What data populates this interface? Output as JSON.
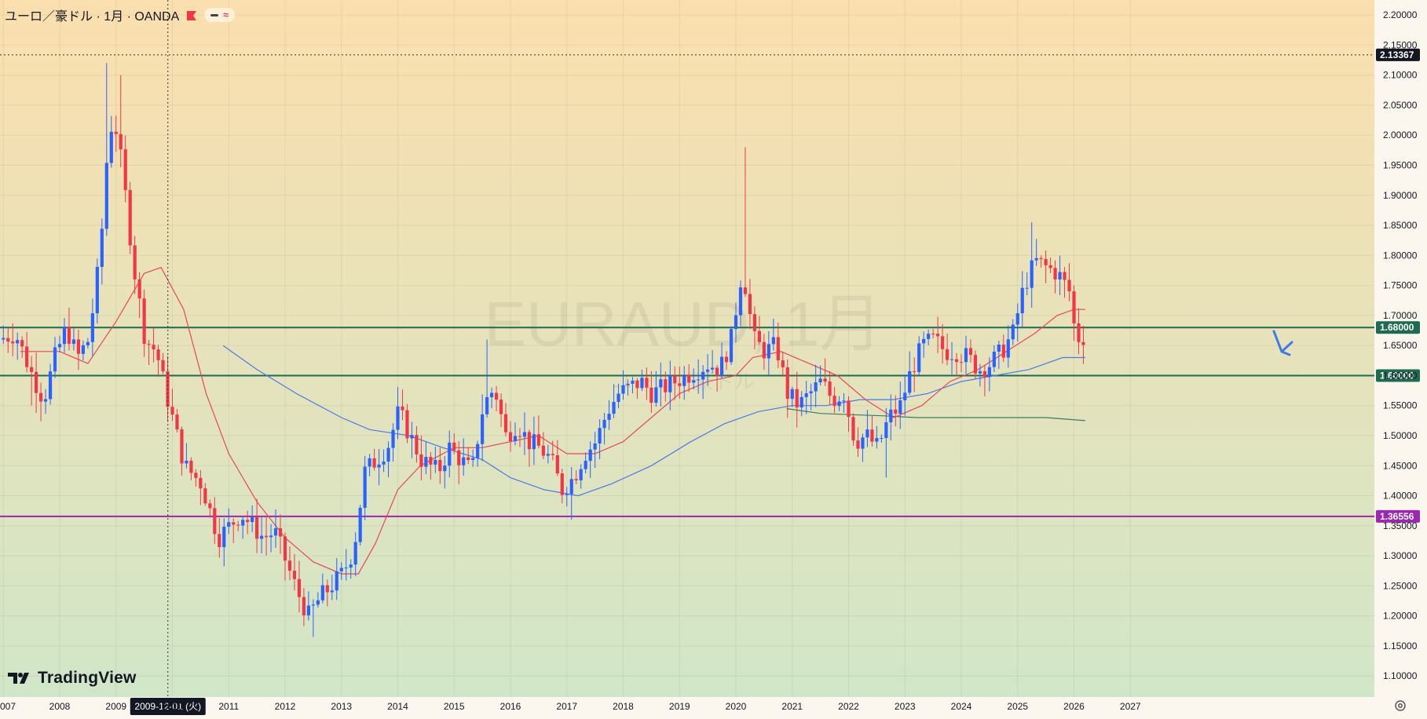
{
  "header": {
    "title": "ユーロ／豪ドル · 1月 · OANDA",
    "approx_symbol": "≈"
  },
  "watermark": {
    "symbol": "EURAUD, 1月",
    "subtitle": "ユーロ／豪ドル"
  },
  "brand": {
    "logo_text": "TradingView"
  },
  "settings_icon": "gear-icon",
  "colors": {
    "up": "#2962ff",
    "down": "#f23645",
    "ma_short": "#e8475a",
    "ma_mid": "#4b7be5",
    "ma_long": "#3c7a5e",
    "level_green": "#1e6b52",
    "level_purple": "#9c27b0",
    "bg_top": "#fbdfae",
    "bg_bottom": "#d1e6c8",
    "arrow": "#3f7be6"
  },
  "crosshair": {
    "date_label": "2009-12-01 (火)",
    "price_label": "2.13367"
  },
  "chart_data": {
    "type": "candlestick",
    "series_name": "EURAUD, 1月",
    "y_range": [
      1.065,
      2.225
    ],
    "x_range_years": [
      2007.0,
      2028.0
    ],
    "y_ticks": [
      "2.20000",
      "2.15000",
      "2.10000",
      "2.05000",
      "2.00000",
      "1.95000",
      "1.90000",
      "1.85000",
      "1.80000",
      "1.75000",
      "1.70000",
      "1.65000",
      "1.60000",
      "1.55000",
      "1.50000",
      "1.45000",
      "1.40000",
      "1.35000",
      "1.30000",
      "1.25000",
      "1.20000",
      "1.15000",
      "1.10000"
    ],
    "x_ticks": [
      "007",
      "2008",
      "2009",
      "2010",
      "2011",
      "2012",
      "2013",
      "2014",
      "2015",
      "2016",
      "2017",
      "2018",
      "2019",
      "2020",
      "2021",
      "2022",
      "2023",
      "2024",
      "2025",
      "2026",
      "2027"
    ],
    "horizontal_levels": [
      {
        "value": 1.68,
        "label": "1.68000",
        "color": "#1e6b52"
      },
      {
        "value": 1.6,
        "label": "1.60000",
        "color": "#1e6b52"
      },
      {
        "value": 1.36556,
        "label": "1.36556",
        "color": "#9c27b0"
      }
    ],
    "anchors": [
      [
        2007.0,
        1.66
      ],
      [
        2007.3,
        1.67
      ],
      [
        2007.6,
        1.6
      ],
      [
        2007.8,
        1.56
      ],
      [
        2008.0,
        1.63
      ],
      [
        2008.2,
        1.68
      ],
      [
        2008.4,
        1.63
      ],
      [
        2008.6,
        1.66
      ],
      [
        2008.8,
        1.8
      ],
      [
        2008.95,
        2.0
      ],
      [
        2009.05,
        2.03
      ],
      [
        2009.2,
        1.94
      ],
      [
        2009.4,
        1.78
      ],
      [
        2009.6,
        1.66
      ],
      [
        2009.8,
        1.64
      ],
      [
        2010.0,
        1.56
      ],
      [
        2010.3,
        1.45
      ],
      [
        2010.6,
        1.42
      ],
      [
        2010.9,
        1.33
      ],
      [
        2011.1,
        1.35
      ],
      [
        2011.3,
        1.37
      ],
      [
        2011.5,
        1.35
      ],
      [
        2011.7,
        1.33
      ],
      [
        2011.9,
        1.34
      ],
      [
        2012.1,
        1.29
      ],
      [
        2012.3,
        1.24
      ],
      [
        2012.5,
        1.2
      ],
      [
        2012.7,
        1.23
      ],
      [
        2012.9,
        1.25
      ],
      [
        2013.1,
        1.27
      ],
      [
        2013.3,
        1.31
      ],
      [
        2013.5,
        1.44
      ],
      [
        2013.7,
        1.46
      ],
      [
        2013.9,
        1.48
      ],
      [
        2014.1,
        1.54
      ],
      [
        2014.3,
        1.5
      ],
      [
        2014.5,
        1.46
      ],
      [
        2014.8,
        1.44
      ],
      [
        2015.0,
        1.48
      ],
      [
        2015.2,
        1.46
      ],
      [
        2015.4,
        1.44
      ],
      [
        2015.6,
        1.55
      ],
      [
        2015.8,
        1.58
      ],
      [
        2016.0,
        1.5
      ],
      [
        2016.2,
        1.52
      ],
      [
        2016.4,
        1.49
      ],
      [
        2016.6,
        1.48
      ],
      [
        2016.8,
        1.46
      ],
      [
        2017.0,
        1.41
      ],
      [
        2017.2,
        1.43
      ],
      [
        2017.4,
        1.47
      ],
      [
        2017.6,
        1.49
      ],
      [
        2017.8,
        1.54
      ],
      [
        2018.0,
        1.57
      ],
      [
        2018.2,
        1.58
      ],
      [
        2018.4,
        1.59
      ],
      [
        2018.6,
        1.57
      ],
      [
        2018.8,
        1.58
      ],
      [
        2019.0,
        1.59
      ],
      [
        2019.2,
        1.6
      ],
      [
        2019.4,
        1.61
      ],
      [
        2019.6,
        1.62
      ],
      [
        2019.8,
        1.61
      ],
      [
        2020.0,
        1.66
      ],
      [
        2020.2,
        1.78
      ],
      [
        2020.4,
        1.66
      ],
      [
        2020.6,
        1.64
      ],
      [
        2020.8,
        1.65
      ],
      [
        2021.0,
        1.57
      ],
      [
        2021.2,
        1.55
      ],
      [
        2021.4,
        1.57
      ],
      [
        2021.6,
        1.59
      ],
      [
        2021.8,
        1.56
      ],
      [
        2022.0,
        1.57
      ],
      [
        2022.2,
        1.49
      ],
      [
        2022.4,
        1.5
      ],
      [
        2022.6,
        1.48
      ],
      [
        2022.8,
        1.53
      ],
      [
        2023.0,
        1.55
      ],
      [
        2023.2,
        1.61
      ],
      [
        2023.4,
        1.65
      ],
      [
        2023.6,
        1.66
      ],
      [
        2023.8,
        1.64
      ],
      [
        2024.0,
        1.64
      ],
      [
        2024.2,
        1.63
      ],
      [
        2024.4,
        1.61
      ],
      [
        2024.6,
        1.62
      ],
      [
        2024.8,
        1.64
      ],
      [
        2025.0,
        1.67
      ],
      [
        2025.2,
        1.75
      ],
      [
        2025.4,
        1.79
      ],
      [
        2025.6,
        1.78
      ],
      [
        2025.8,
        1.77
      ],
      [
        2026.0,
        1.74
      ],
      [
        2026.12,
        1.66
      ],
      [
        2026.2,
        1.665
      ]
    ],
    "spikes": [
      {
        "x": 2008.85,
        "high": 2.12
      },
      {
        "x": 2009.05,
        "high": 2.1
      },
      {
        "x": 2020.2,
        "high": 1.98
      },
      {
        "x": 2025.25,
        "high": 1.855
      },
      {
        "x": 2015.6,
        "high": 1.66
      },
      {
        "x": 2007.5,
        "low": 1.55
      },
      {
        "x": 2012.5,
        "low": 1.165
      },
      {
        "x": 2017.05,
        "low": 1.36
      },
      {
        "x": 2022.7,
        "low": 1.43
      }
    ],
    "ma_short": [
      [
        2007.3,
        1.64
      ],
      [
        2008.0,
        1.64
      ],
      [
        2008.5,
        1.62
      ],
      [
        2009.0,
        1.69
      ],
      [
        2009.5,
        1.77
      ],
      [
        2009.8,
        1.78
      ],
      [
        2010.2,
        1.71
      ],
      [
        2010.6,
        1.57
      ],
      [
        2011.0,
        1.47
      ],
      [
        2011.5,
        1.39
      ],
      [
        2012.0,
        1.33
      ],
      [
        2012.5,
        1.29
      ],
      [
        2013.0,
        1.27
      ],
      [
        2013.3,
        1.27
      ],
      [
        2013.6,
        1.32
      ],
      [
        2014.0,
        1.41
      ],
      [
        2014.4,
        1.45
      ],
      [
        2015.0,
        1.48
      ],
      [
        2015.5,
        1.48
      ],
      [
        2016.0,
        1.49
      ],
      [
        2016.5,
        1.5
      ],
      [
        2017.0,
        1.47
      ],
      [
        2017.5,
        1.47
      ],
      [
        2018.0,
        1.49
      ],
      [
        2018.5,
        1.53
      ],
      [
        2019.0,
        1.57
      ],
      [
        2019.5,
        1.59
      ],
      [
        2020.0,
        1.6
      ],
      [
        2020.3,
        1.63
      ],
      [
        2020.8,
        1.64
      ],
      [
        2021.3,
        1.62
      ],
      [
        2021.8,
        1.6
      ],
      [
        2022.3,
        1.56
      ],
      [
        2022.8,
        1.53
      ],
      [
        2023.3,
        1.55
      ],
      [
        2023.8,
        1.59
      ],
      [
        2024.3,
        1.61
      ],
      [
        2024.8,
        1.64
      ],
      [
        2025.3,
        1.67
      ],
      [
        2025.7,
        1.7
      ],
      [
        2026.0,
        1.71
      ],
      [
        2026.2,
        1.71
      ]
    ],
    "ma_mid": [
      [
        2010.9,
        1.65
      ],
      [
        2011.5,
        1.61
      ],
      [
        2012.2,
        1.57
      ],
      [
        2013.0,
        1.53
      ],
      [
        2013.5,
        1.51
      ],
      [
        2014.2,
        1.5
      ],
      [
        2014.8,
        1.48
      ],
      [
        2015.5,
        1.46
      ],
      [
        2016.0,
        1.43
      ],
      [
        2016.6,
        1.41
      ],
      [
        2017.2,
        1.4
      ],
      [
        2017.8,
        1.42
      ],
      [
        2018.5,
        1.45
      ],
      [
        2019.2,
        1.49
      ],
      [
        2019.8,
        1.52
      ],
      [
        2020.4,
        1.54
      ],
      [
        2021.0,
        1.55
      ],
      [
        2021.6,
        1.55
      ],
      [
        2022.2,
        1.56
      ],
      [
        2022.8,
        1.56
      ],
      [
        2023.4,
        1.57
      ],
      [
        2024.0,
        1.59
      ],
      [
        2024.6,
        1.6
      ],
      [
        2025.2,
        1.61
      ],
      [
        2025.8,
        1.63
      ],
      [
        2026.2,
        1.63
      ]
    ],
    "ma_long": [
      [
        2020.9,
        1.545
      ],
      [
        2021.5,
        1.537
      ],
      [
        2022.0,
        1.535
      ],
      [
        2022.6,
        1.533
      ],
      [
        2023.2,
        1.53
      ],
      [
        2023.8,
        1.53
      ],
      [
        2024.4,
        1.53
      ],
      [
        2025.0,
        1.53
      ],
      [
        2025.5,
        1.53
      ],
      [
        2026.2,
        1.525
      ]
    ]
  }
}
